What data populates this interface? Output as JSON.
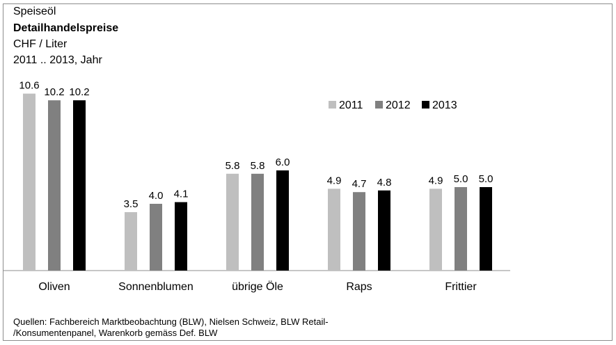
{
  "header": {
    "product": "Speiseöl",
    "title": "Detailhandelspreise",
    "unit": "CHF / Liter",
    "period": "2011 .. 2013, Jahr"
  },
  "source": {
    "line1": "Quellen: Fachbereich Marktbeobachtung (BLW), Nielsen Schweiz, BLW Retail-",
    "line2": "/Konsumentenpanel, Warenkorb gemäss Def. BLW"
  },
  "chart_data": {
    "type": "bar",
    "categories": [
      "Oliven",
      "Sonnenblumen",
      "übrige Öle",
      "Raps",
      "Frittier"
    ],
    "series": [
      {
        "name": "2011",
        "color": "#bfbfbf",
        "values": [
          10.6,
          3.5,
          5.8,
          4.9,
          4.9
        ],
        "labels": [
          "10.6",
          "3.5",
          "5.8",
          "4.9",
          "4.9"
        ]
      },
      {
        "name": "2012",
        "color": "#808080",
        "values": [
          10.2,
          4.0,
          5.8,
          4.7,
          5.0
        ],
        "labels": [
          "10.2",
          "4.0",
          "5.8",
          "4.7",
          "5.0"
        ]
      },
      {
        "name": "2013",
        "color": "#000000",
        "values": [
          10.2,
          4.1,
          6.0,
          4.8,
          5.0
        ],
        "labels": [
          "10.2",
          "4.1",
          "6.0",
          "4.8",
          "5.0"
        ]
      }
    ],
    "ylim": [
      0,
      11.5
    ],
    "grid": false,
    "legend": "top-right"
  }
}
